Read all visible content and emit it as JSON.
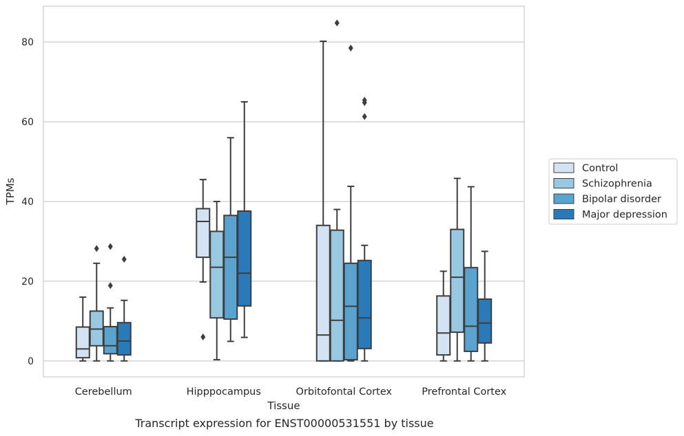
{
  "caption": "Transcript expression for ENST00000531551 by tissue",
  "chart_data": {
    "type": "boxplot",
    "title": "",
    "xlabel": "Tissue",
    "ylabel": "TPMs",
    "ylim": [
      -4,
      89
    ],
    "yticks": [
      0,
      20,
      40,
      60,
      80
    ],
    "grid": "horizontal",
    "legend_position": "right",
    "categories": [
      "Cerebellum",
      "Hipppocampus",
      "Orbitofontal Cortex",
      "Prefrontal Cortex"
    ],
    "series": [
      {
        "name": "Control",
        "color": "#d3e3f3",
        "boxes": [
          {
            "whislo": 0,
            "q1": 0.8,
            "med": 3.0,
            "q3": 8.5,
            "whishi": 16.0,
            "fliers": []
          },
          {
            "whislo": 19.8,
            "q1": 26.0,
            "med": 35.0,
            "q3": 38.2,
            "whishi": 45.5,
            "fliers": [
              6.0
            ]
          },
          {
            "whislo": 0,
            "q1": 0,
            "med": 6.5,
            "q3": 34.0,
            "whishi": 80.2,
            "fliers": []
          },
          {
            "whislo": 0,
            "q1": 1.5,
            "med": 7.0,
            "q3": 16.3,
            "whishi": 22.5,
            "fliers": []
          }
        ]
      },
      {
        "name": "Schizophrenia",
        "color": "#9ac8e0",
        "boxes": [
          {
            "whislo": 0,
            "q1": 3.8,
            "med": 8.0,
            "q3": 12.5,
            "whishi": 24.5,
            "fliers": [
              28.2
            ]
          },
          {
            "whislo": 0.3,
            "q1": 10.8,
            "med": 23.5,
            "q3": 32.5,
            "whishi": 40.0,
            "fliers": []
          },
          {
            "whislo": 0,
            "q1": 0,
            "med": 10.2,
            "q3": 32.8,
            "whishi": 38.0,
            "fliers": [
              84.8
            ]
          },
          {
            "whislo": 0,
            "q1": 7.2,
            "med": 21.0,
            "q3": 33.0,
            "whishi": 45.8,
            "fliers": []
          }
        ]
      },
      {
        "name": "Bipolar disorder",
        "color": "#5ba3cf",
        "boxes": [
          {
            "whislo": 0,
            "q1": 1.8,
            "med": 3.8,
            "q3": 8.6,
            "whishi": 13.3,
            "fliers": [
              18.9,
              28.7
            ]
          },
          {
            "whislo": 4.9,
            "q1": 10.5,
            "med": 26.0,
            "q3": 36.5,
            "whishi": 56.0,
            "fliers": []
          },
          {
            "whislo": 0,
            "q1": 0.3,
            "med": 13.7,
            "q3": 24.5,
            "whishi": 43.8,
            "fliers": [
              78.5
            ]
          },
          {
            "whislo": 0,
            "q1": 2.4,
            "med": 8.7,
            "q3": 23.4,
            "whishi": 43.7,
            "fliers": []
          }
        ]
      },
      {
        "name": "Major depression",
        "color": "#2a7ab9",
        "boxes": [
          {
            "whislo": 0,
            "q1": 1.5,
            "med": 5.0,
            "q3": 9.6,
            "whishi": 15.2,
            "fliers": [
              25.5
            ]
          },
          {
            "whislo": 5.9,
            "q1": 13.8,
            "med": 22.0,
            "q3": 37.6,
            "whishi": 65.0,
            "fliers": []
          },
          {
            "whislo": 0,
            "q1": 3.1,
            "med": 10.8,
            "q3": 25.2,
            "whishi": 29.0,
            "fliers": [
              61.3,
              64.8,
              65.4
            ]
          },
          {
            "whislo": 0,
            "q1": 4.5,
            "med": 9.5,
            "q3": 15.5,
            "whishi": 27.5,
            "fliers": []
          }
        ]
      }
    ]
  }
}
